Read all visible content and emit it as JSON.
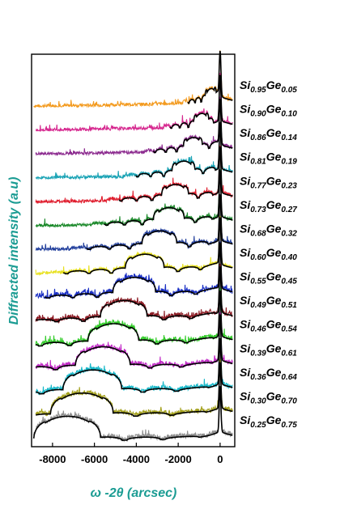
{
  "chart_data": {
    "type": "line",
    "title": "",
    "xlabel": "ω -2θ (arcsec)",
    "ylabel": "Diffracted intensity (a.u)",
    "xlim": [
      -9000,
      700
    ],
    "xticks": [
      -8000,
      -6000,
      -4000,
      -2000,
      0
    ],
    "xtick_labels": [
      "-8000",
      "-6000",
      "-4000",
      "-2000",
      "0"
    ],
    "y_scale": "stacked offsets (arbitrary units)",
    "legend": "labels at right of each trace",
    "series": [
      {
        "name": "Si0.95Ge0.05",
        "label_base": "Si",
        "si_sub": "0.95",
        "label_mid": "Ge",
        "ge_sub": "0.05",
        "color": "#f39a1e",
        "peak_x": -450,
        "x_start": -8900
      },
      {
        "name": "Si0.90Ge0.10",
        "label_base": "Si",
        "si_sub": "0.90",
        "label_mid": "Ge",
        "ge_sub": "0.10",
        "color": "#d6288f",
        "peak_x": -900,
        "x_start": -8800
      },
      {
        "name": "Si0.86Ge0.14",
        "label_base": "Si",
        "si_sub": "0.86",
        "label_mid": "Ge",
        "ge_sub": "0.14",
        "color": "#8c2b8f",
        "peak_x": -1300,
        "x_start": -8800
      },
      {
        "name": "Si0.81Ge0.19",
        "label_base": "Si",
        "si_sub": "0.81",
        "label_mid": "Ge",
        "ge_sub": "0.19",
        "color": "#1aa3b5",
        "peak_x": -1750,
        "x_start": -8800
      },
      {
        "name": "Si0.77Ge0.23",
        "label_base": "Si",
        "si_sub": "0.77",
        "label_mid": "Ge",
        "ge_sub": "0.23",
        "color": "#e02030",
        "peak_x": -2150,
        "x_start": -8800
      },
      {
        "name": "Si0.73Ge0.27",
        "label_base": "Si",
        "si_sub": "0.73",
        "label_mid": "Ge",
        "ge_sub": "0.27",
        "color": "#1d8a2c",
        "peak_x": -2450,
        "x_start": -8800
      },
      {
        "name": "Si0.68Ge0.32",
        "label_base": "Si",
        "si_sub": "0.68",
        "label_mid": "Ge",
        "ge_sub": "0.32",
        "color": "#223f9c",
        "peak_x": -2900,
        "x_start": -8800
      },
      {
        "name": "Si0.60Ge0.40",
        "label_base": "Si",
        "si_sub": "0.60",
        "label_mid": "Ge",
        "ge_sub": "0.40",
        "color": "#e7e01e",
        "peak_x": -3600,
        "x_start": -8800
      },
      {
        "name": "Si0.55Ge0.45",
        "label_base": "Si",
        "si_sub": "0.55",
        "label_mid": "Ge",
        "ge_sub": "0.45",
        "color": "#1a2fc4",
        "peak_x": -4100,
        "x_start": -8800
      },
      {
        "name": "Si0.49Ge0.51",
        "label_base": "Si",
        "si_sub": "0.49",
        "label_mid": "Ge",
        "ge_sub": "0.51",
        "color": "#8c1b24",
        "peak_x": -4600,
        "x_start": -8800
      },
      {
        "name": "Si0.46Ge0.54",
        "label_base": "Si",
        "si_sub": "0.46",
        "label_mid": "Ge",
        "ge_sub": "0.54",
        "color": "#33cc2a",
        "peak_x": -5100,
        "x_start": -8800
      },
      {
        "name": "Si0.39Ge0.61",
        "label_base": "Si",
        "si_sub": "0.39",
        "label_mid": "Ge",
        "ge_sub": "0.61",
        "color": "#c22bc7",
        "peak_x": -5600,
        "x_start": -8800
      },
      {
        "name": "Si0.36Ge0.64",
        "label_base": "Si",
        "si_sub": "0.36",
        "label_mid": "Ge",
        "ge_sub": "0.64",
        "color": "#17b8c9",
        "peak_x": -6100,
        "x_start": -8800
      },
      {
        "name": "Si0.30Ge0.70",
        "label_base": "Si",
        "si_sub": "0.30",
        "label_mid": "Ge",
        "ge_sub": "0.70",
        "color": "#a3a01b",
        "peak_x": -6600,
        "x_start": -8800
      },
      {
        "name": "Si0.25Ge0.75",
        "label_base": "Si",
        "si_sub": "0.25",
        "label_mid": "Ge",
        "ge_sub": "0.75",
        "color": "#8f8f8f",
        "peak_x": -7300,
        "x_start": -8900
      }
    ]
  }
}
